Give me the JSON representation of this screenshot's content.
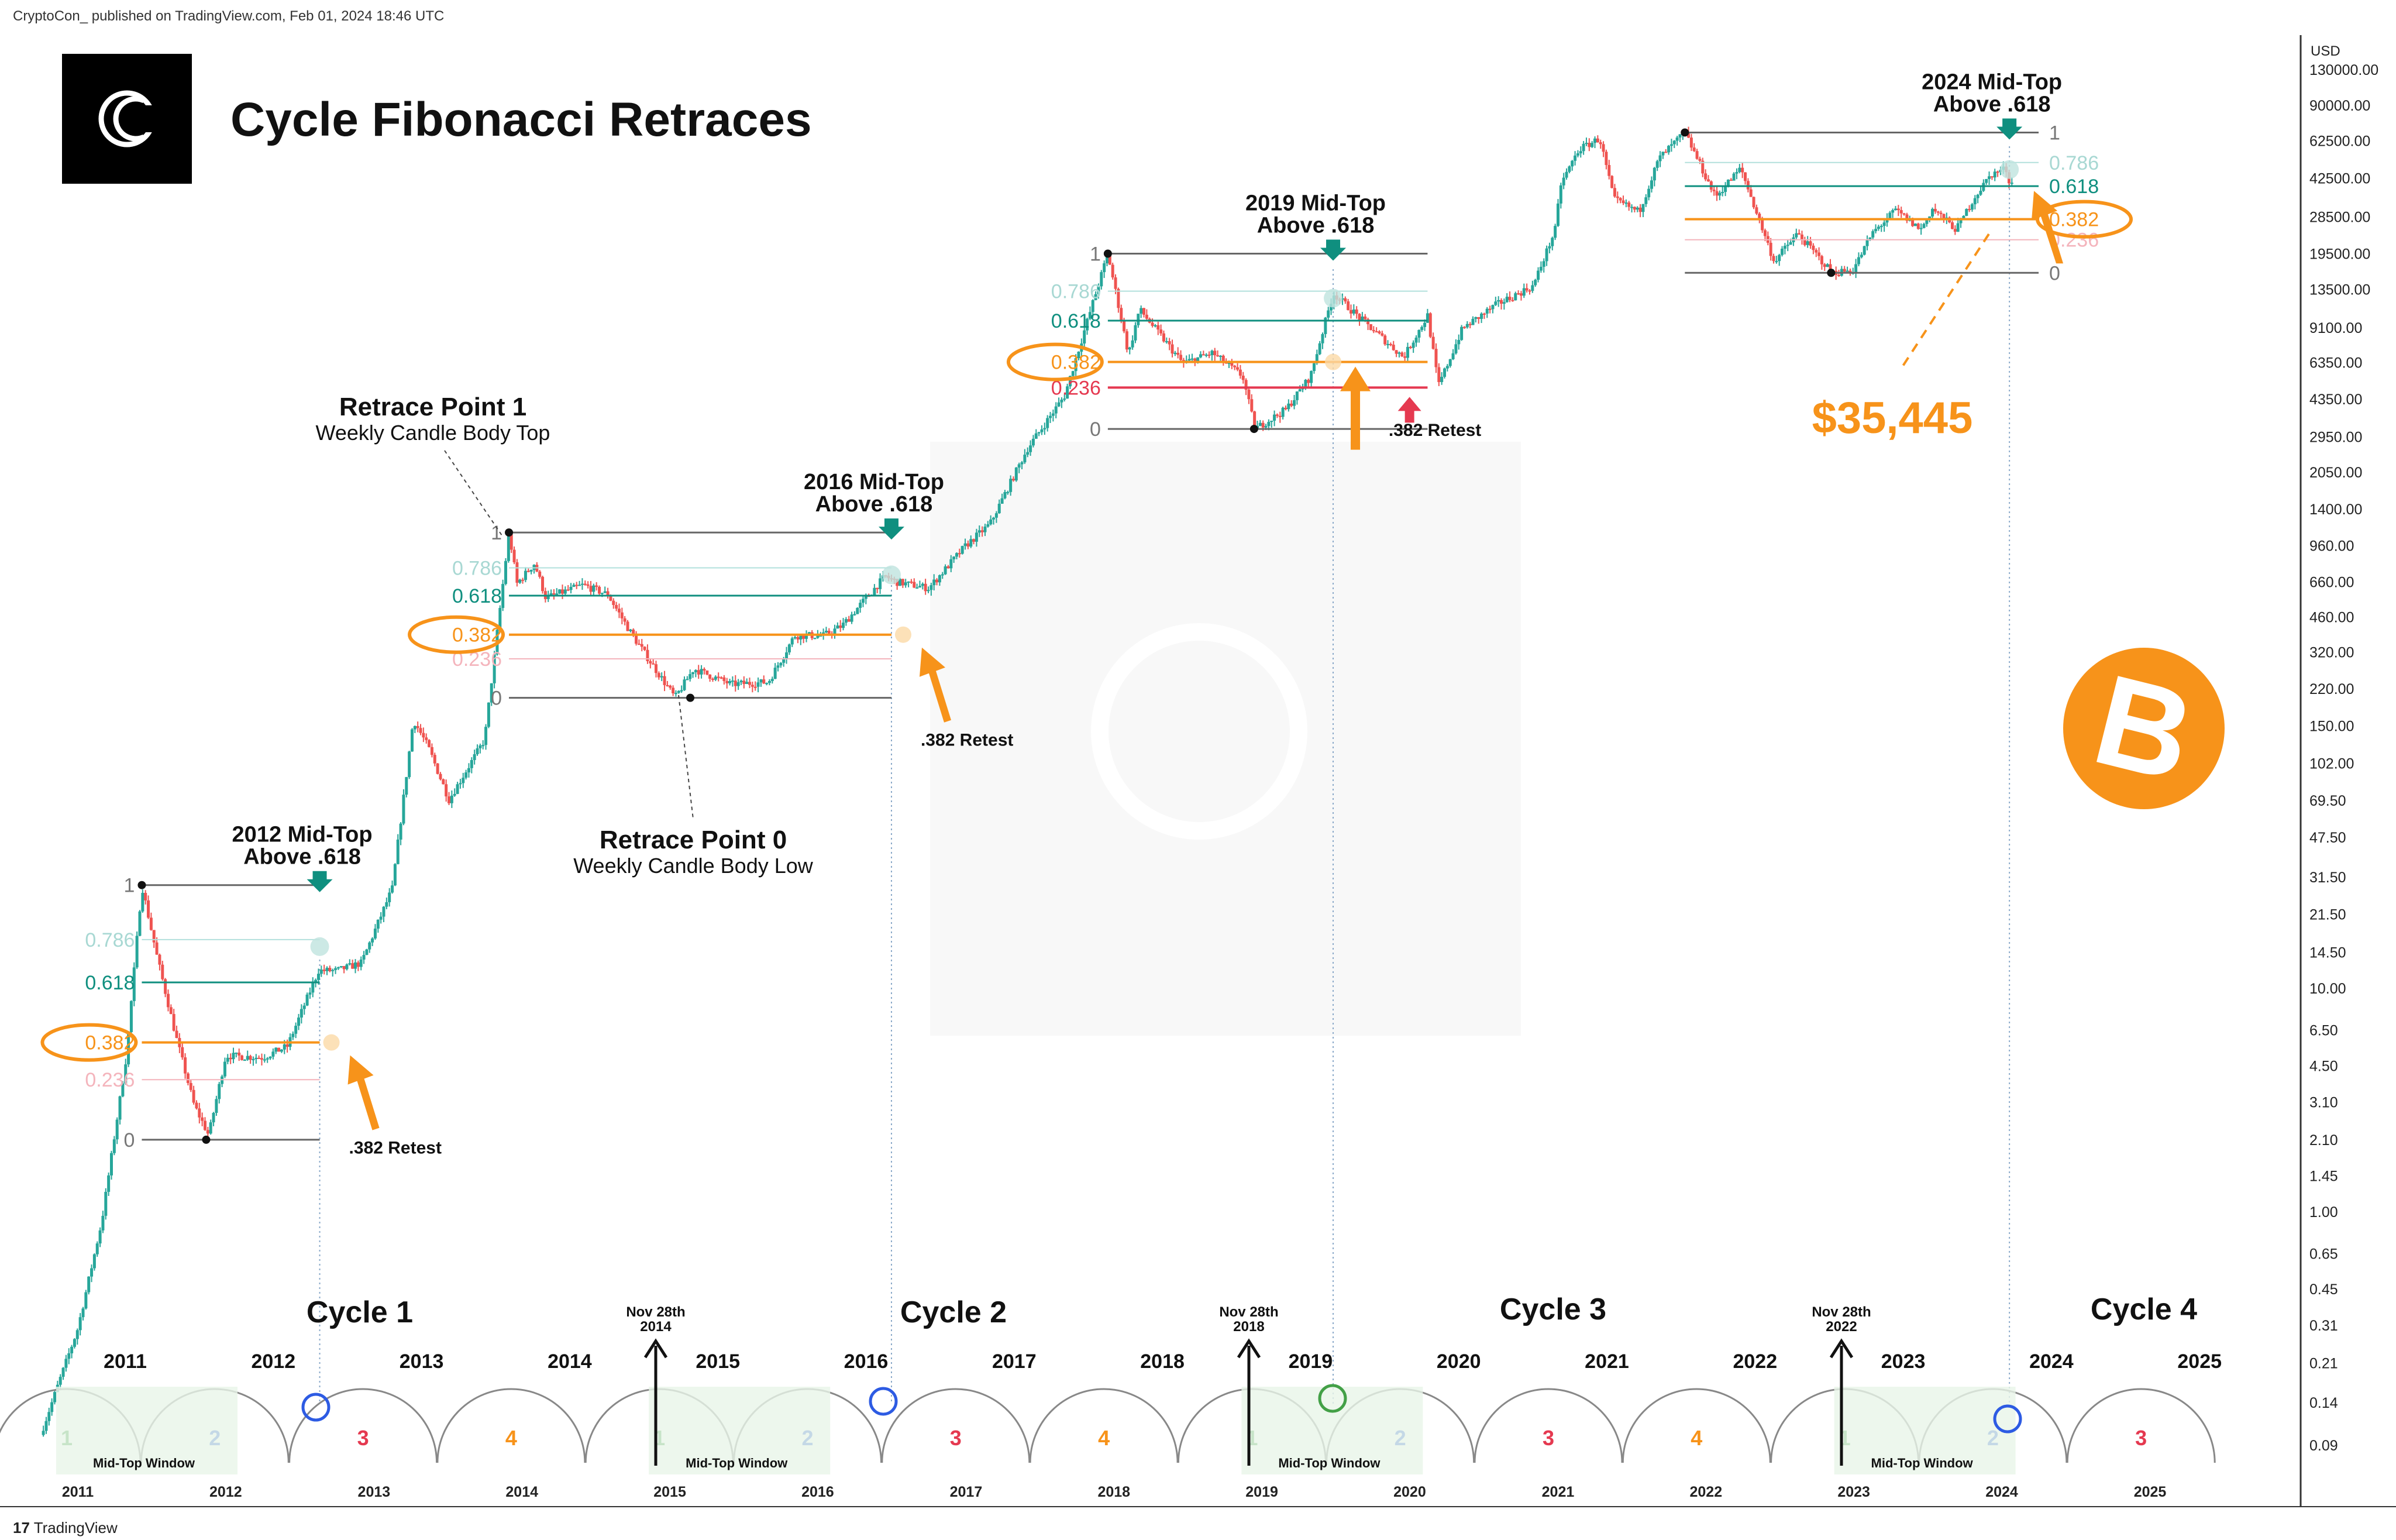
{
  "header": {
    "published": "CryptoCon_ published on TradingView.com, Feb 01, 2024 18:46 UTC"
  },
  "title": "Cycle Fibonacci Retraces",
  "currency": "USD",
  "footer": {
    "brand": "TradingView",
    "logo_glyph": "17"
  },
  "colors": {
    "up": "#26a69a",
    "down": "#ef5350",
    "orange": "#f7931a",
    "teal": "#0f8f7f",
    "red": "#e53950",
    "green": "#43a047",
    "blue": "#3366dd"
  },
  "chart_data": {
    "type": "line",
    "scale": "log",
    "series": [
      {
        "values": [
          [
            "2010-10-01",
            0.1
          ],
          [
            "2011-01-01",
            0.3
          ],
          [
            "2011-03-01",
            0.9
          ],
          [
            "2011-05-01",
            5
          ],
          [
            "2011-06-08",
            29
          ],
          [
            "2011-07-15",
            14
          ],
          [
            "2011-09-01",
            6
          ],
          [
            "2011-10-15",
            3
          ],
          [
            "2011-11-20",
            2.2
          ],
          [
            "2012-01-01",
            5
          ],
          [
            "2012-04-01",
            4.9
          ],
          [
            "2012-06-01",
            5.5
          ],
          [
            "2012-08-17",
            12
          ],
          [
            "2012-10-01",
            12
          ],
          [
            "2012-12-01",
            13
          ],
          [
            "2013-02-15",
            28
          ],
          [
            "2013-04-08",
            160
          ],
          [
            "2013-05-15",
            120
          ],
          [
            "2013-07-05",
            70
          ],
          [
            "2013-10-01",
            130
          ],
          [
            "2013-11-30",
            1100
          ],
          [
            "2013-12-20",
            650
          ],
          [
            "2014-02-01",
            800
          ],
          [
            "2014-03-01",
            560
          ],
          [
            "2014-06-01",
            640
          ],
          [
            "2014-08-01",
            580
          ],
          [
            "2014-10-01",
            380
          ],
          [
            "2015-01-14",
            200
          ],
          [
            "2015-03-01",
            270
          ],
          [
            "2015-06-01",
            230
          ],
          [
            "2015-09-01",
            235
          ],
          [
            "2015-11-05",
            380
          ],
          [
            "2016-01-15",
            380
          ],
          [
            "2016-03-01",
            420
          ],
          [
            "2016-06-15",
            700
          ],
          [
            "2016-07-15",
            660
          ],
          [
            "2016-10-01",
            620
          ],
          [
            "2016-12-31",
            960
          ],
          [
            "2017-03-01",
            1200
          ],
          [
            "2017-06-01",
            2600
          ],
          [
            "2017-09-01",
            4500
          ],
          [
            "2017-12-17",
            19500
          ],
          [
            "2018-02-06",
            6900
          ],
          [
            "2018-03-05",
            11000
          ],
          [
            "2018-06-20",
            6300
          ],
          [
            "2018-09-01",
            7000
          ],
          [
            "2018-11-15",
            5500
          ],
          [
            "2018-12-15",
            3200
          ],
          [
            "2019-03-01",
            3900
          ],
          [
            "2019-05-01",
            5500
          ],
          [
            "2019-06-26",
            13000
          ],
          [
            "2019-09-01",
            10000
          ],
          [
            "2019-12-17",
            6700
          ],
          [
            "2020-02-14",
            10300
          ],
          [
            "2020-03-12",
            5000
          ],
          [
            "2020-05-10",
            9000
          ],
          [
            "2020-08-01",
            11500
          ],
          [
            "2020-11-01",
            14000
          ],
          [
            "2020-12-25",
            25000
          ],
          [
            "2021-01-08",
            40000
          ],
          [
            "2021-02-21",
            57000
          ],
          [
            "2021-04-14",
            64000
          ],
          [
            "2021-05-19",
            34000
          ],
          [
            "2021-07-20",
            30000
          ],
          [
            "2021-09-07",
            52000
          ],
          [
            "2021-11-10",
            68000
          ],
          [
            "2022-01-24",
            35000
          ],
          [
            "2022-03-28",
            47000
          ],
          [
            "2022-06-18",
            18000
          ],
          [
            "2022-08-15",
            24000
          ],
          [
            "2022-11-09",
            16000
          ],
          [
            "2022-12-30",
            16500
          ],
          [
            "2023-02-15",
            24000
          ],
          [
            "2023-04-14",
            30500
          ],
          [
            "2023-06-15",
            25000
          ],
          [
            "2023-07-14",
            31000
          ],
          [
            "2023-09-11",
            25000
          ],
          [
            "2023-10-24",
            34500
          ],
          [
            "2023-12-05",
            44000
          ],
          [
            "2024-01-11",
            47000
          ],
          [
            "2024-01-23",
            39000
          ],
          [
            "2024-02-01",
            43000
          ]
        ]
      }
    ],
    "y_ticks": [
      "130000.00",
      "90000.00",
      "62500.00",
      "42500.00",
      "28500.00",
      "19500.00",
      "13500.00",
      "9100.00",
      "6350.00",
      "4350.00",
      "2950.00",
      "2050.00",
      "1400.00",
      "960.00",
      "660.00",
      "460.00",
      "320.00",
      "220.00",
      "150.00",
      "102.00",
      "69.50",
      "47.50",
      "31.50",
      "21.50",
      "14.50",
      "10.00",
      "6.50",
      "4.50",
      "3.10",
      "2.10",
      "1.45",
      "1.00",
      "0.65",
      "0.45",
      "0.31",
      "0.21",
      "0.14",
      "0.09"
    ],
    "x_ticks": [
      "2011",
      "2012",
      "2013",
      "2014",
      "2015",
      "2016",
      "2017",
      "2018",
      "2019",
      "2020",
      "2021",
      "2022",
      "2023",
      "2024",
      "2025"
    ],
    "fib_levels": [
      "1",
      "0.786",
      "0.618",
      "0.382",
      "0.236",
      "0"
    ],
    "retraces": [
      {
        "cycle": "2012",
        "high": 29,
        "low": 2.1,
        "label": "2012 Mid-Top",
        "sub": "Above .618",
        "retest": ".382 Retest",
        "start": "2011-06-08",
        "end": "2012-08-20"
      },
      {
        "cycle": "2016",
        "high": 1100,
        "low": 200,
        "label": "2016 Mid-Top",
        "sub": "Above .618",
        "retest": ".382 Retest",
        "start": "2013-11-30",
        "end": "2016-07-01"
      },
      {
        "cycle": "2019",
        "high": 19500,
        "low": 3200,
        "label": "2019 Mid-Top",
        "sub": "Above .618",
        "retest": ".382 Retest",
        "start": "2017-12-17",
        "end": "2020-02-14"
      },
      {
        "cycle": "2024",
        "high": 68000,
        "low": 16000,
        "label": "2024 Mid-Top",
        "sub": "Above .618",
        "target": "$35,445",
        "start": "2021-11-10",
        "end": "2024-04-01"
      }
    ],
    "annotations": {
      "rp1_title": "Retrace Point 1",
      "rp1_sub": "Weekly Candle Body Top",
      "rp0_title": "Retrace Point 0",
      "rp0_sub": "Weekly Candle Body Low"
    },
    "cycles": [
      {
        "name": "Cycle 1",
        "year": "2012"
      },
      {
        "name": "Cycle 2",
        "year": "2016"
      },
      {
        "name": "Cycle 3",
        "year": "2020"
      },
      {
        "name": "Cycle 4",
        "year": "2024"
      }
    ],
    "halvings": [
      "Nov 28th 2014",
      "Nov 28th 2018",
      "Nov 28th 2022"
    ],
    "cycle_years": [
      "2011",
      "2012",
      "2013",
      "2014",
      "2015",
      "2016",
      "2017",
      "2018",
      "2019",
      "2020",
      "2021",
      "2022",
      "2023",
      "2024",
      "2025"
    ],
    "arc_numbers": [
      "1",
      "2",
      "3",
      "4",
      "1",
      "2",
      "3",
      "4",
      "1",
      "2",
      "3",
      "4",
      "1",
      "2",
      "3"
    ],
    "window_label": "Mid-Top Window"
  }
}
